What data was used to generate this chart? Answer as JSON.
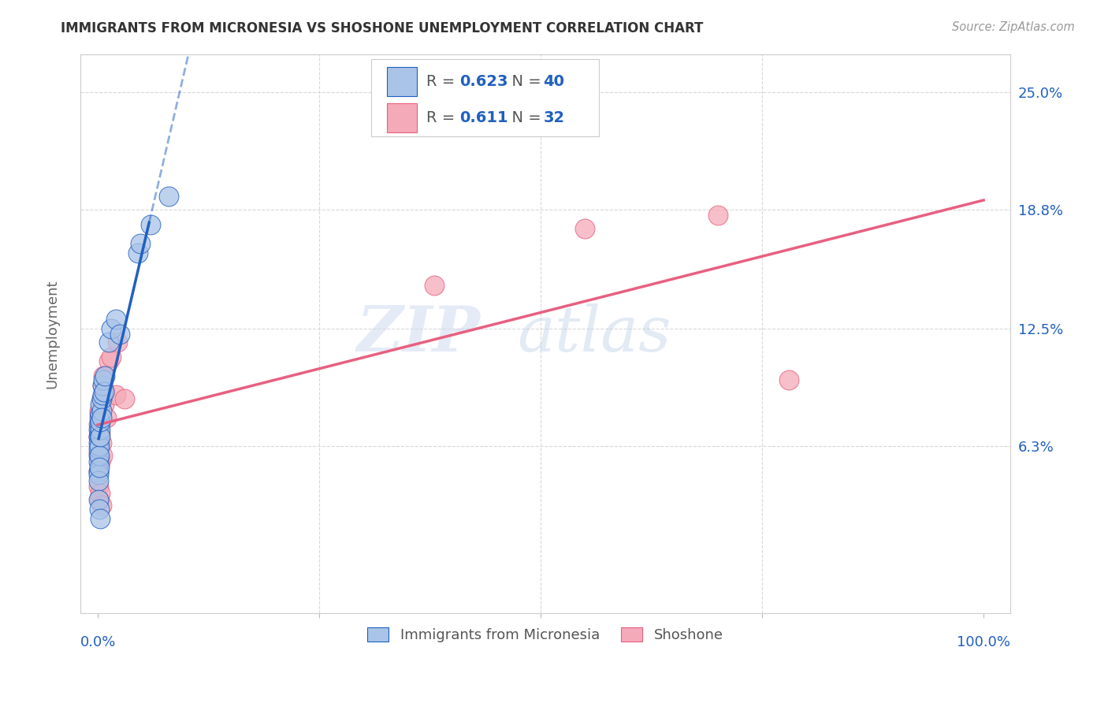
{
  "title": "IMMIGRANTS FROM MICRONESIA VS SHOSHONE UNEMPLOYMENT CORRELATION CHART",
  "source": "Source: ZipAtlas.com",
  "ylabel": "Unemployment",
  "ytick_vals": [
    0.063,
    0.125,
    0.188,
    0.25
  ],
  "ytick_labels": [
    "6.3%",
    "12.5%",
    "18.8%",
    "25.0%"
  ],
  "legend_blue_r": "0.623",
  "legend_blue_n": "40",
  "legend_pink_r": "0.611",
  "legend_pink_n": "32",
  "blue_scatter_x": [
    0.001,
    0.001,
    0.001,
    0.001,
    0.001,
    0.001,
    0.001,
    0.001,
    0.001,
    0.002,
    0.002,
    0.002,
    0.002,
    0.002,
    0.002,
    0.002,
    0.003,
    0.003,
    0.003,
    0.003,
    0.003,
    0.004,
    0.004,
    0.004,
    0.005,
    0.005,
    0.006,
    0.007,
    0.008,
    0.012,
    0.015,
    0.02,
    0.025,
    0.045,
    0.048,
    0.06,
    0.08,
    0.001,
    0.002,
    0.003
  ],
  "blue_scatter_y": [
    0.068,
    0.072,
    0.065,
    0.058,
    0.055,
    0.05,
    0.048,
    0.045,
    0.062,
    0.07,
    0.075,
    0.068,
    0.063,
    0.058,
    0.052,
    0.078,
    0.08,
    0.085,
    0.072,
    0.068,
    0.076,
    0.082,
    0.088,
    0.078,
    0.09,
    0.095,
    0.098,
    0.092,
    0.1,
    0.118,
    0.125,
    0.13,
    0.122,
    0.165,
    0.17,
    0.18,
    0.195,
    0.035,
    0.03,
    0.025
  ],
  "pink_scatter_x": [
    0.001,
    0.001,
    0.001,
    0.001,
    0.002,
    0.002,
    0.002,
    0.002,
    0.003,
    0.003,
    0.003,
    0.004,
    0.004,
    0.005,
    0.005,
    0.006,
    0.007,
    0.008,
    0.01,
    0.012,
    0.015,
    0.02,
    0.022,
    0.03,
    0.38,
    0.55,
    0.7,
    0.78,
    0.001,
    0.002,
    0.003,
    0.004
  ],
  "pink_scatter_y": [
    0.06,
    0.068,
    0.075,
    0.05,
    0.08,
    0.072,
    0.065,
    0.082,
    0.07,
    0.078,
    0.055,
    0.088,
    0.065,
    0.095,
    0.058,
    0.1,
    0.085,
    0.092,
    0.078,
    0.108,
    0.11,
    0.09,
    0.118,
    0.088,
    0.148,
    0.178,
    0.185,
    0.098,
    0.042,
    0.035,
    0.038,
    0.032
  ],
  "blue_color": "#aac4e8",
  "pink_color": "#f4aab8",
  "blue_line_color": "#2060c0",
  "pink_line_color": "#e86080",
  "watermark_zip": "ZIP",
  "watermark_atlas": "atlas",
  "background_color": "#ffffff",
  "grid_color": "#d8d8d8",
  "xlim": [
    -0.02,
    1.03
  ],
  "ylim": [
    -0.025,
    0.27
  ]
}
